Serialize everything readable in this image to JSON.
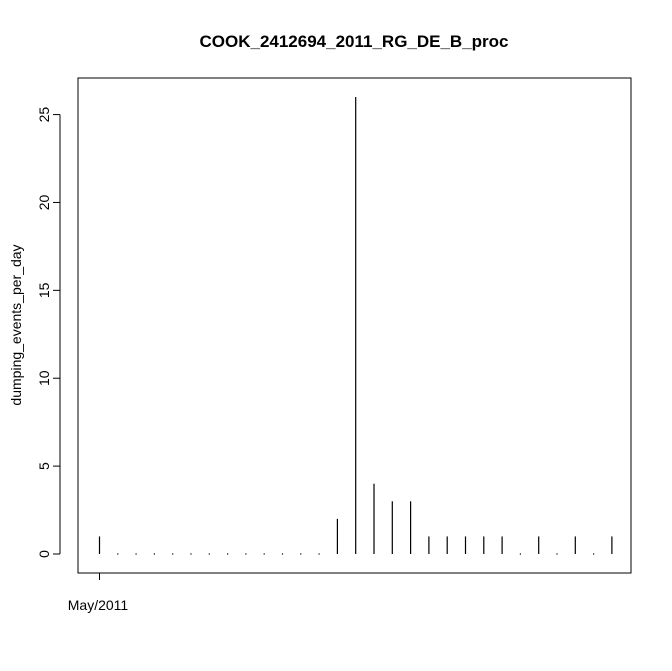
{
  "chart_data": {
    "type": "bar",
    "title": "COOK_2412694_2011_RG_DE_B_proc",
    "xlabel": "",
    "ylabel": "dumping_events_per_day",
    "x_tick_labels": [
      "May/2011"
    ],
    "y_ticks": [
      0,
      5,
      10,
      15,
      20,
      25
    ],
    "ylim": [
      0,
      26
    ],
    "grid": false,
    "legend": "none",
    "values": [
      1,
      0,
      0,
      0,
      0,
      0,
      0,
      0,
      0,
      0,
      0,
      0,
      0,
      2,
      26,
      4,
      3,
      3,
      1,
      1,
      1,
      1,
      1,
      0,
      1,
      0,
      1,
      0,
      1
    ]
  }
}
